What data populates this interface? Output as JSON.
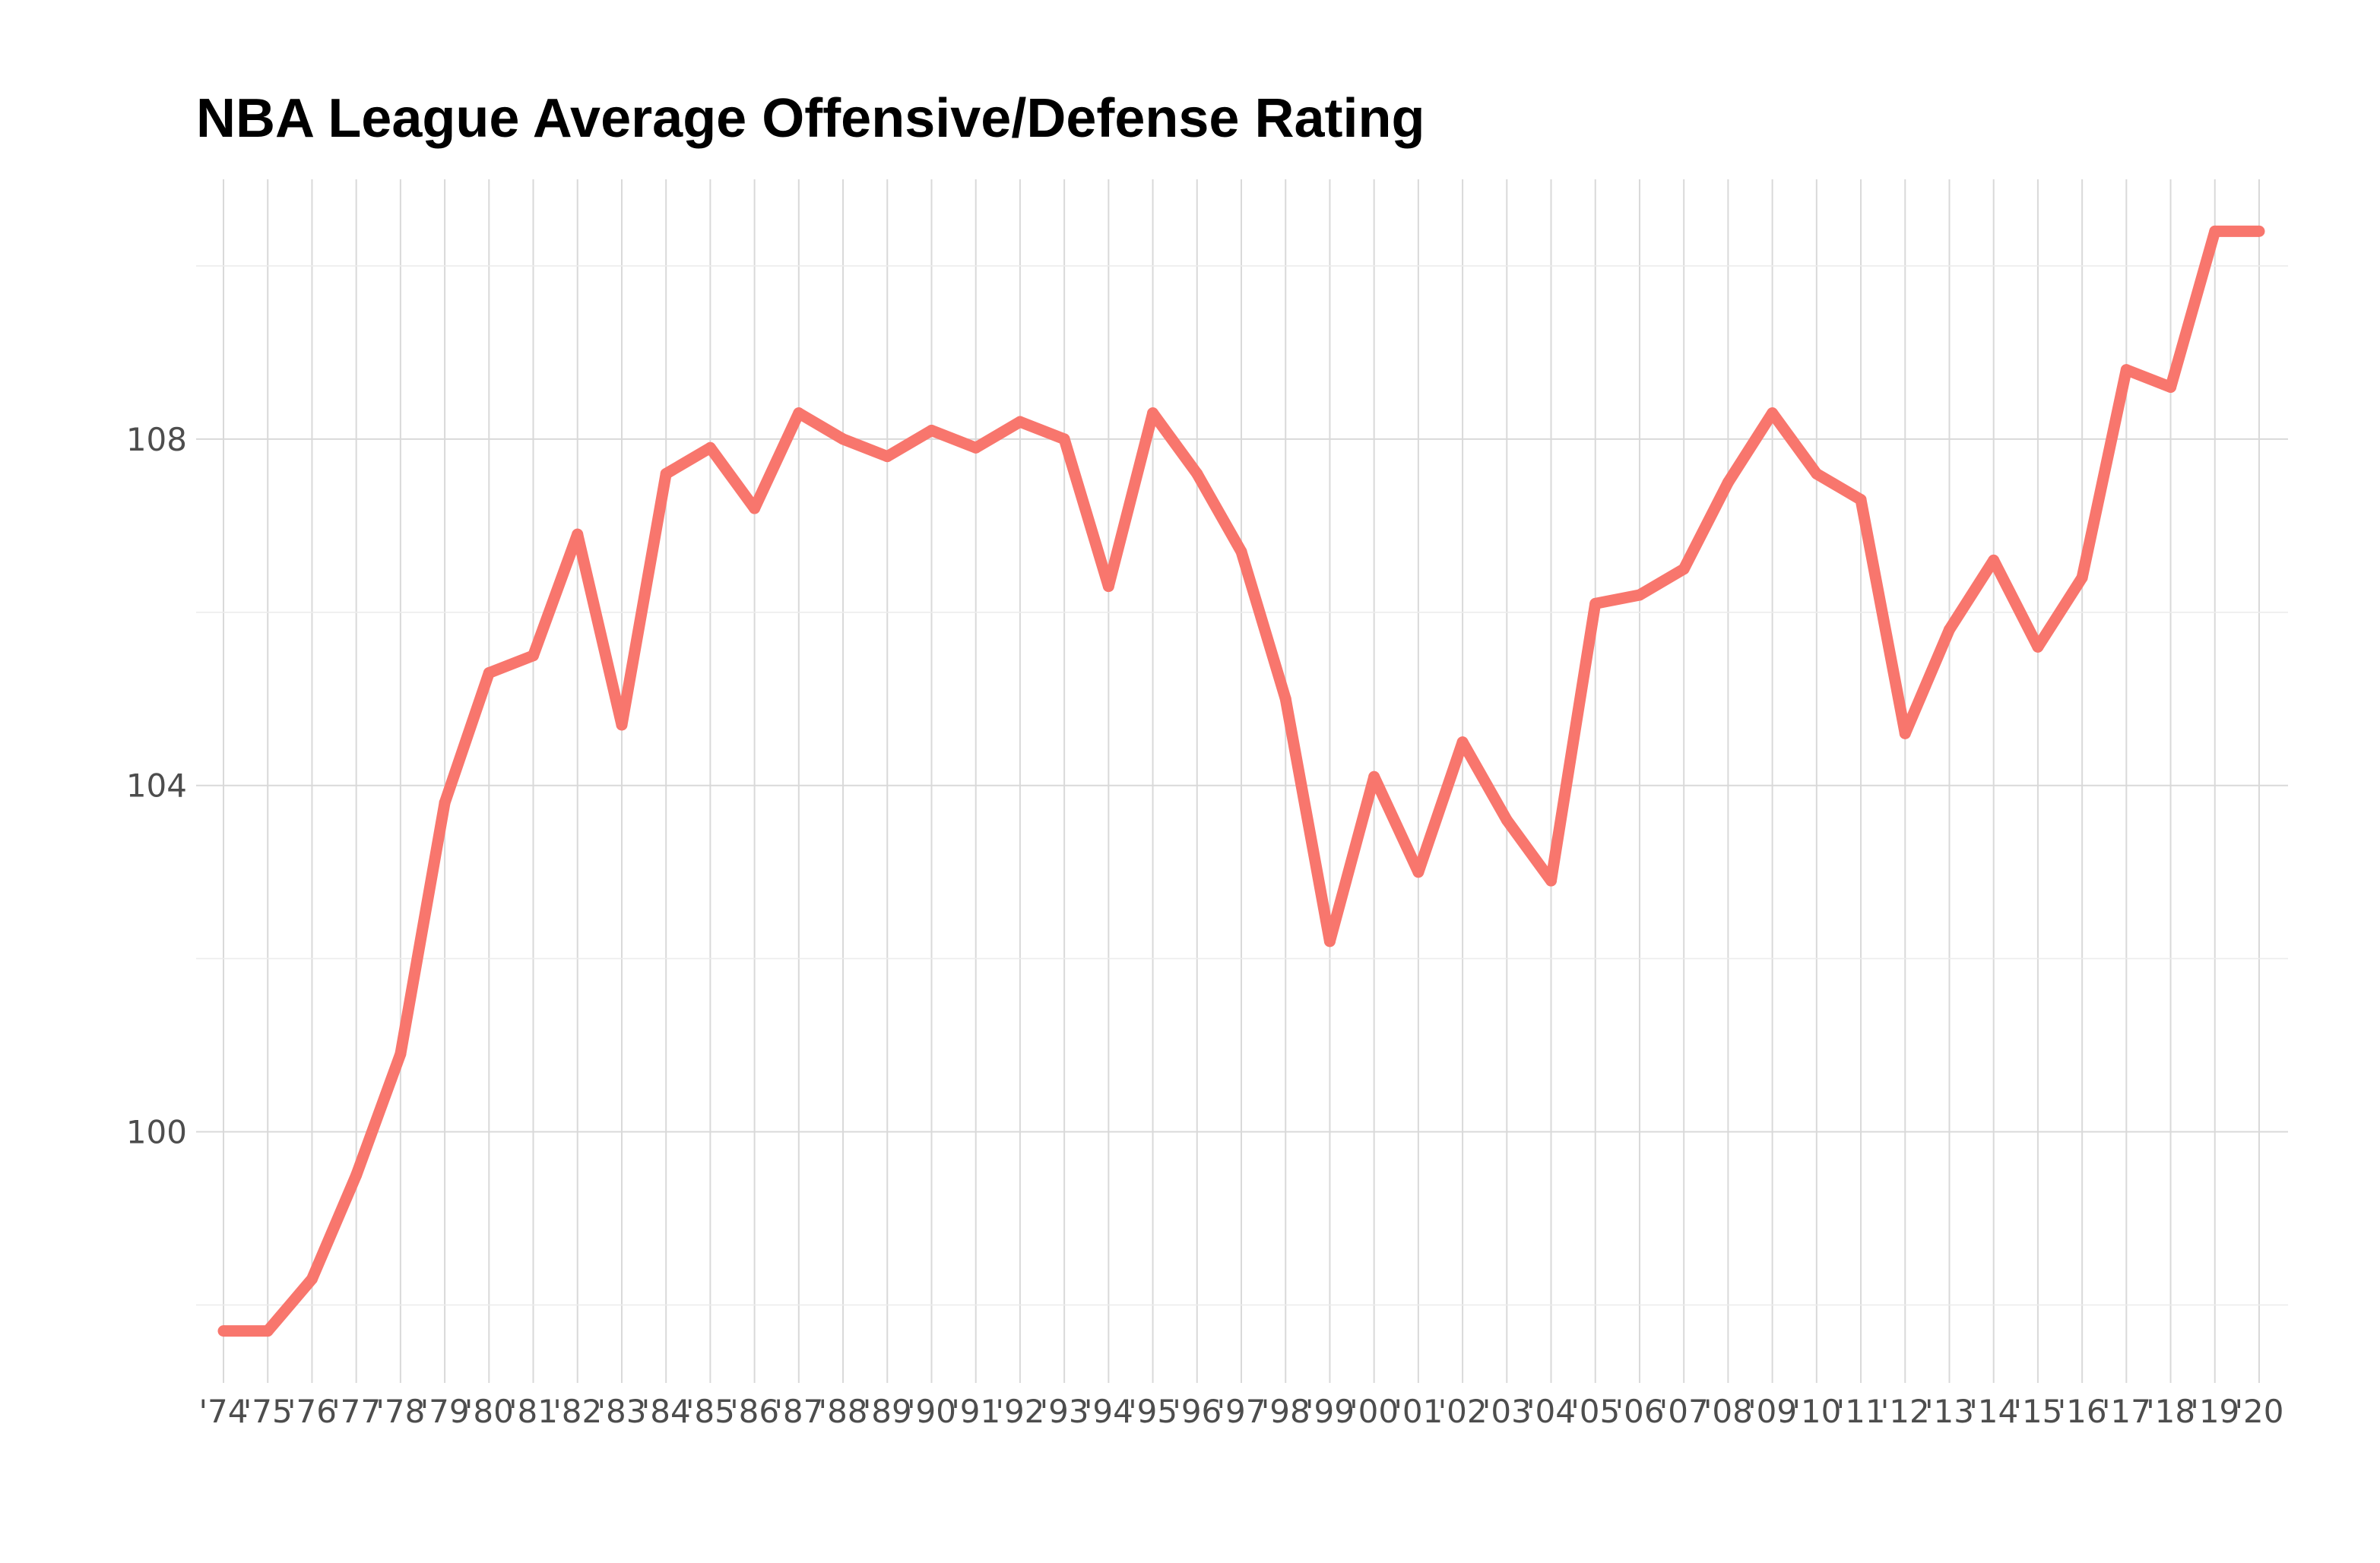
{
  "chart_data": {
    "type": "line",
    "title": "NBA League Average Offensive/Defense Rating",
    "xlabel": "",
    "ylabel": "",
    "x": [
      "'74",
      "'75",
      "'76",
      "'77",
      "'78",
      "'79",
      "'80",
      "'81",
      "'82",
      "'83",
      "'84",
      "'85",
      "'86",
      "'87",
      "'88",
      "'89",
      "'90",
      "'91",
      "'92",
      "'93",
      "'94",
      "'95",
      "'96",
      "'97",
      "'98",
      "'99",
      "'00",
      "'01",
      "'02",
      "'03",
      "'04",
      "'05",
      "'06",
      "'07",
      "'08",
      "'09",
      "'10",
      "'11",
      "'12",
      "'13",
      "'14",
      "'15",
      "'16",
      "'17",
      "'18",
      "'19",
      "'20"
    ],
    "series": [
      {
        "values": [
          97.7,
          97.7,
          98.3,
          99.5,
          100.9,
          103.8,
          105.3,
          105.5,
          106.9,
          104.7,
          107.6,
          107.9,
          107.2,
          108.3,
          108.0,
          107.8,
          108.1,
          107.9,
          108.2,
          108.0,
          106.3,
          108.3,
          107.6,
          106.7,
          105.0,
          102.2,
          104.1,
          103.0,
          104.5,
          103.6,
          102.9,
          106.1,
          106.2,
          106.5,
          107.5,
          108.3,
          107.6,
          107.3,
          104.6,
          105.8,
          106.6,
          105.6,
          106.4,
          108.8,
          108.6,
          110.4,
          110.4
        ]
      }
    ],
    "yticks": [
      100,
      104,
      108
    ],
    "ylim": [
      97.1,
      111.0
    ],
    "grid": true,
    "legend": "none",
    "colors": {
      "line": "#f8766d",
      "grid_major": "#d9d9d9",
      "grid_minor": "#ececec",
      "title": "#000000",
      "tick_label": "#4d4d4d"
    }
  }
}
